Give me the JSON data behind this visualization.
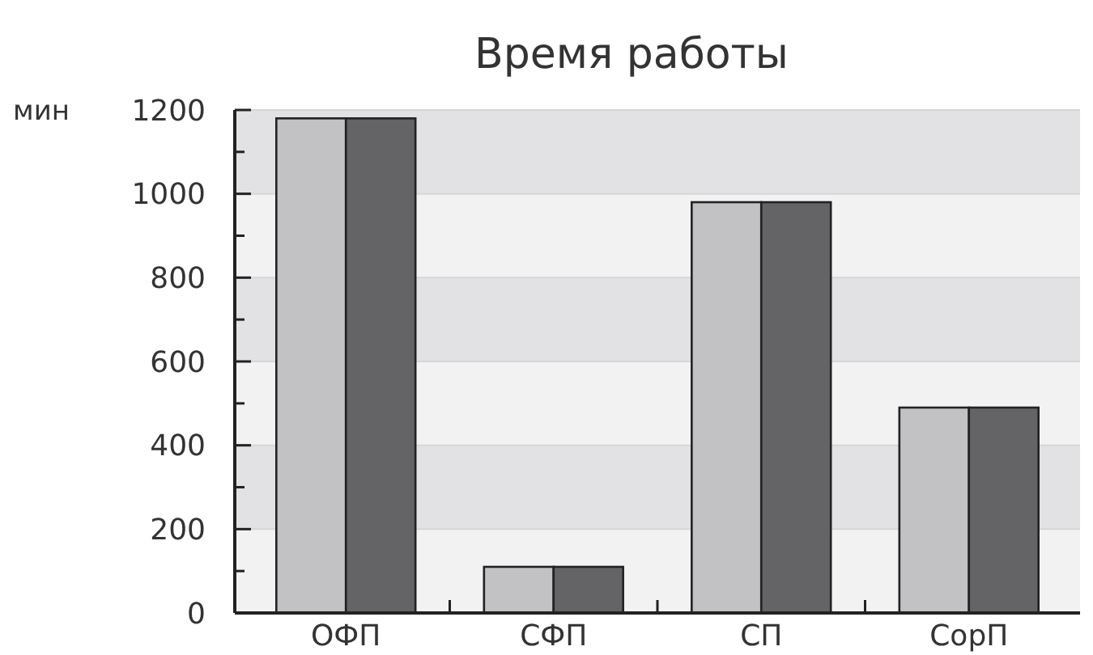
{
  "chart_data": {
    "type": "bar",
    "title": "Время работы",
    "ylabel": "мин",
    "categories": [
      "ОФП",
      "СФП",
      "СП",
      "СорП"
    ],
    "series": [
      {
        "color": "#c2c2c4",
        "values": [
          1180,
          110,
          980,
          490
        ]
      },
      {
        "color": "#646466",
        "values": [
          1180,
          110,
          980,
          490
        ]
      }
    ],
    "ylim": [
      0,
      1200
    ],
    "yticks": [
      0,
      {
        "value": 100,
        "label": null
      },
      200,
      {
        "value": 300,
        "label": null
      },
      400,
      {
        "value": 500,
        "label": null
      },
      600,
      {
        "value": 700,
        "label": null
      },
      800,
      {
        "value": 900,
        "label": null
      },
      1000,
      {
        "value": 1100,
        "label": null
      },
      1200
    ],
    "grid": "y"
  }
}
